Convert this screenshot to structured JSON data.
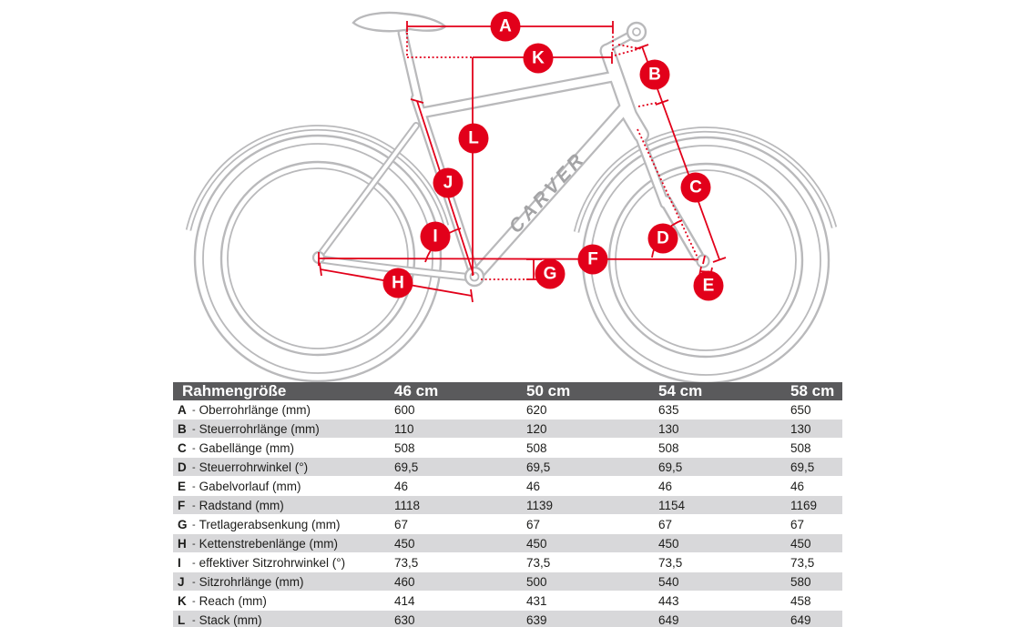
{
  "brand_logo": "CARVER",
  "colors": {
    "accent_red": "#e2001a",
    "bike_gray": "#b9b9bb",
    "table_header_bg": "#5a5a5c",
    "table_row_alt": "#d8d8da",
    "text_ink": "#1d1d1b"
  },
  "diagram": {
    "labels": [
      "A",
      "B",
      "C",
      "D",
      "E",
      "F",
      "G",
      "H",
      "I",
      "J",
      "K",
      "L"
    ]
  },
  "table": {
    "size_label": "Rahmengröße",
    "letter_separator": "-",
    "columns": [
      "46 cm",
      "50 cm",
      "54 cm",
      "58 cm"
    ],
    "rows": [
      {
        "letter": "A",
        "label": "Oberrohrlänge (mm)",
        "values": [
          "600",
          "620",
          "635",
          "650"
        ]
      },
      {
        "letter": "B",
        "label": "Steuerrohrlänge (mm)",
        "values": [
          "110",
          "120",
          "130",
          "130"
        ]
      },
      {
        "letter": "C",
        "label": "Gabellänge (mm)",
        "values": [
          "508",
          "508",
          "508",
          "508"
        ]
      },
      {
        "letter": "D",
        "label": "Steuerrohrwinkel (°)",
        "values": [
          "69,5",
          "69,5",
          "69,5",
          "69,5"
        ]
      },
      {
        "letter": "E",
        "label": "Gabelvorlauf (mm)",
        "values": [
          "46",
          "46",
          "46",
          "46"
        ]
      },
      {
        "letter": "F",
        "label": "Radstand (mm)",
        "values": [
          "1118",
          "1139",
          "1154",
          "1169"
        ]
      },
      {
        "letter": "G",
        "label": "Tretlagerabsenkung (mm)",
        "values": [
          "67",
          "67",
          "67",
          "67"
        ]
      },
      {
        "letter": "H",
        "label": "Kettenstrebenlänge (mm)",
        "values": [
          "450",
          "450",
          "450",
          "450"
        ]
      },
      {
        "letter": "I",
        "label": "effektiver Sitzrohrwinkel (°)",
        "values": [
          "73,5",
          "73,5",
          "73,5",
          "73,5"
        ]
      },
      {
        "letter": "J",
        "label": "Sitzrohrlänge (mm)",
        "values": [
          "460",
          "500",
          "540",
          "580"
        ]
      },
      {
        "letter": "K",
        "label": "Reach (mm)",
        "values": [
          "414",
          "431",
          "443",
          "458"
        ]
      },
      {
        "letter": "L",
        "label": "Stack (mm)",
        "values": [
          "630",
          "639",
          "649",
          "649"
        ]
      }
    ]
  }
}
